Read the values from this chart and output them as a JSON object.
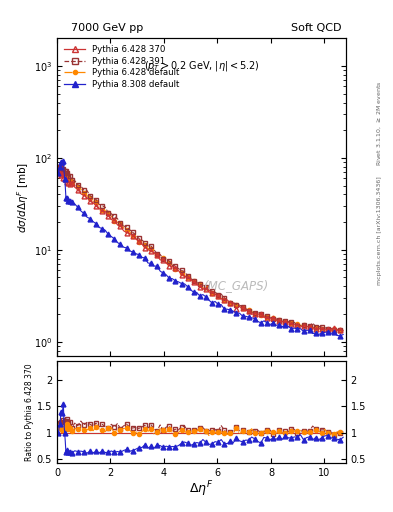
{
  "title_left": "7000 GeV pp",
  "title_right": "Soft QCD",
  "annotation": "$(p_T > 0.2$ GeV, $|\\eta| < 5.2)$",
  "watermark": "(MC_GAPS)",
  "ylabel_main": "$d\\sigma/d\\Delta\\eta^{F}$ [mb]",
  "ylabel_ratio": "Ratio to Pythia 6.428 370",
  "xlabel": "$\\Delta\\eta^{F}$",
  "right_label_top": "Rivet 3.1.10, $\\geq$ 2M events",
  "right_label_bottom": "mcplots.cern.ch [arXiv:1306.3436]",
  "ylim_main": [
    0.7,
    2000
  ],
  "ylim_ratio": [
    0.42,
    2.35
  ],
  "xlim": [
    0,
    10.8
  ],
  "yticks_ratio": [
    0.5,
    1.0,
    1.5,
    2.0
  ],
  "series": [
    {
      "label": "Pythia 6.428 370",
      "color": "#cc3333",
      "linestyle": "-",
      "marker": "^",
      "markerfacecolor": "none",
      "markersize": 3.5,
      "linewidth": 0.8
    },
    {
      "label": "Pythia 6.428 391",
      "color": "#993333",
      "linestyle": "--",
      "marker": "s",
      "markerfacecolor": "none",
      "markersize": 3.5,
      "linewidth": 0.8
    },
    {
      "label": "Pythia 6.428 default",
      "color": "#ff8800",
      "linestyle": "-.",
      "marker": "o",
      "markerfacecolor": "#ff8800",
      "markersize": 3,
      "linewidth": 0.8
    },
    {
      "label": "Pythia 8.308 default",
      "color": "#2222cc",
      "linestyle": "-",
      "marker": "^",
      "markerfacecolor": "#2222cc",
      "markersize": 3.5,
      "linewidth": 0.8
    }
  ],
  "background_color": "#ffffff"
}
